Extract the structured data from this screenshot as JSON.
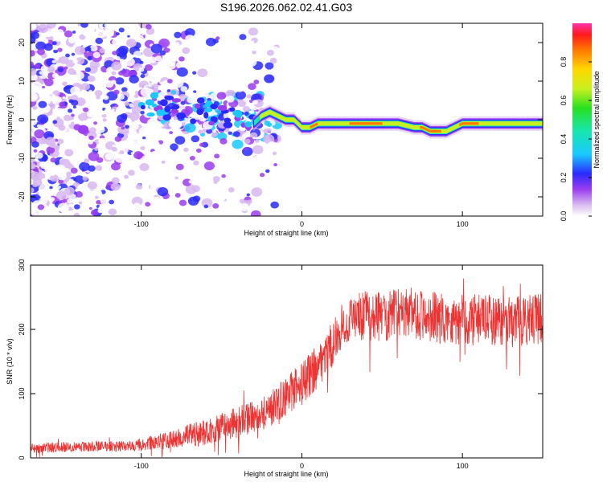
{
  "title": "S196.2026.062.02.41.G03",
  "chart_data": [
    {
      "type": "heatmap",
      "xlabel": "Height of straight line (km)",
      "ylabel": "Frequency (Hz)",
      "xlim": [
        -169,
        150
      ],
      "ylim": [
        -25,
        25
      ],
      "xticks": [
        -100,
        0,
        100
      ],
      "xtick_labels": [
        "-100",
        "0",
        "100"
      ],
      "yticks": [
        -20,
        -10,
        0,
        10,
        20
      ],
      "ytick_labels": [
        "-20",
        "-10",
        "0",
        "10",
        "20"
      ],
      "colorbar": {
        "label": "Normalized spectral amplitude",
        "range": [
          0,
          1
        ],
        "ticks": [
          0.0,
          0.2,
          0.4,
          0.6,
          0.8
        ],
        "tick_labels": [
          "0.0",
          "0.2",
          "0.4",
          "0.6",
          "0.8"
        ]
      },
      "ridge": {
        "x": [
          -30,
          -25,
          -20,
          -15,
          -10,
          -5,
          0,
          5,
          10,
          15,
          20,
          30,
          40,
          50,
          60,
          70,
          75,
          80,
          85,
          90,
          95,
          100,
          110,
          120,
          130,
          140,
          150
        ],
        "frequency": [
          -1,
          1,
          2,
          1,
          0,
          0,
          -2,
          -2,
          -1,
          -1,
          -1,
          -1,
          -1,
          -1,
          -1,
          -2,
          -2,
          -3,
          -3,
          -3,
          -2,
          -1,
          -1,
          -1,
          -1,
          -1,
          -1
        ],
        "amplitude": [
          0.5,
          0.75,
          0.7,
          0.9,
          0.85,
          0.9,
          0.7,
          0.9,
          0.9,
          0.8,
          0.85,
          0.9,
          0.95,
          0.9,
          0.8,
          0.8,
          0.95,
          0.9,
          0.95,
          0.8,
          0.8,
          0.95,
          0.9,
          0.85,
          0.9,
          0.85,
          0.8
        ]
      },
      "noise_region": {
        "x": [
          -169,
          -30
        ],
        "frequency": [
          -25,
          25
        ],
        "amplitude": [
          0,
          0.3
        ]
      }
    },
    {
      "type": "line",
      "xlabel": "Height of straight line (km)",
      "ylabel": "SNR (10 * v/v)",
      "xlim": [
        -169,
        150
      ],
      "ylim": [
        0,
        300
      ],
      "xticks": [
        -100,
        0,
        100
      ],
      "xtick_labels": [
        "-100",
        "0",
        "100"
      ],
      "yticks": [
        0,
        100,
        200,
        300
      ],
      "ytick_labels": [
        "0",
        "100",
        "200",
        "300"
      ],
      "color": "#ee3333",
      "series": [
        {
          "name": "SNR",
          "x": [
            -169,
            -150,
            -130,
            -110,
            -100,
            -90,
            -80,
            -70,
            -60,
            -50,
            -40,
            -30,
            -20,
            -10,
            0,
            10,
            20,
            25,
            30,
            40,
            50,
            60,
            70,
            80,
            90,
            100,
            110,
            120,
            130,
            140,
            150
          ],
          "mean": [
            15,
            17,
            18,
            18,
            20,
            25,
            28,
            35,
            40,
            48,
            55,
            65,
            75,
            95,
            115,
            145,
            180,
            205,
            215,
            220,
            220,
            225,
            225,
            220,
            215,
            215,
            215,
            215,
            210,
            215,
            215
          ],
          "spread": [
            8,
            8,
            8,
            8,
            10,
            12,
            14,
            18,
            20,
            22,
            25,
            25,
            28,
            30,
            35,
            35,
            35,
            35,
            38,
            40,
            40,
            40,
            40,
            40,
            40,
            40,
            40,
            40,
            40,
            40,
            40
          ]
        }
      ]
    }
  ]
}
